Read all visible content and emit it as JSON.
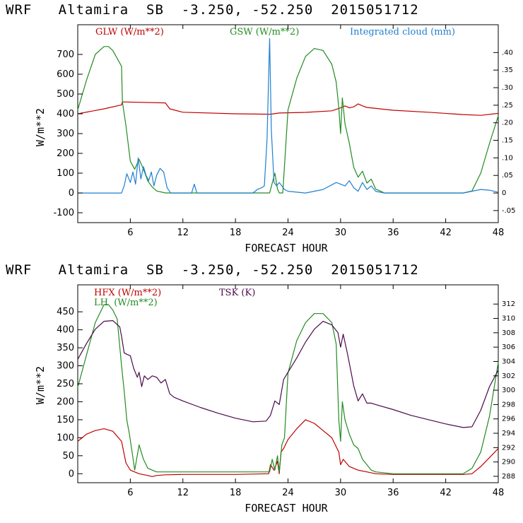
{
  "chart_data": [
    {
      "type": "line",
      "title": "WRF   Altamira  SB  -3.250, -52.250  2015051712",
      "xlabel": "FORECAST HOUR",
      "ylabel": "W/m**2",
      "xlim": [
        0,
        48
      ],
      "ylim": [
        -150,
        850
      ],
      "y2lim": [
        -0.0844,
        0.4792
      ],
      "xticks": [
        6,
        12,
        18,
        24,
        30,
        36,
        42,
        48
      ],
      "yticks": [
        -100,
        0,
        100,
        200,
        300,
        400,
        500,
        600,
        700
      ],
      "y2ticks": [
        -0.05,
        0,
        0.05,
        0.1,
        0.15,
        0.2,
        0.25,
        0.3,
        0.35,
        0.4
      ],
      "y2tick_labels": [
        "-.05",
        "0",
        ".05",
        ".10",
        ".15",
        ".20",
        ".25",
        ".30",
        ".35",
        ".40"
      ],
      "series": [
        {
          "name": "GLW (W/m**2)",
          "color": "#c00000",
          "axis": "left",
          "x": [
            0,
            3,
            5,
            5.1,
            10,
            10.5,
            12,
            18,
            22,
            23,
            26,
            29,
            30,
            30.5,
            31,
            31.5,
            32,
            32.5,
            33,
            36,
            40,
            44,
            46,
            48
          ],
          "y": [
            400,
            425,
            445,
            460,
            455,
            425,
            408,
            400,
            398,
            404,
            407,
            415,
            430,
            440,
            430,
            435,
            450,
            440,
            432,
            418,
            408,
            396,
            392,
            402
          ]
        },
        {
          "name": "GSW (W/m**2)",
          "color": "#228b22",
          "axis": "left",
          "x": [
            0,
            1,
            2,
            3,
            3.5,
            4,
            5,
            5.1,
            5.5,
            6,
            6.5,
            7,
            7.5,
            8,
            8.5,
            9,
            10,
            11,
            21.9,
            22.2,
            22.5,
            22.8,
            23,
            23.4,
            24,
            25,
            26,
            27,
            28,
            29,
            29.5,
            29.8,
            30,
            30.2,
            30.5,
            31,
            31.5,
            32,
            32.5,
            33,
            33.5,
            34,
            34.5,
            35,
            36,
            44,
            45,
            46,
            47,
            48
          ],
          "y": [
            420,
            570,
            700,
            740,
            740,
            720,
            640,
            460,
            340,
            160,
            120,
            170,
            120,
            60,
            30,
            10,
            0,
            0,
            0,
            50,
            100,
            20,
            0,
            0,
            420,
            580,
            690,
            730,
            720,
            650,
            560,
            430,
            300,
            480,
            350,
            250,
            130,
            80,
            110,
            50,
            70,
            20,
            10,
            0,
            0,
            0,
            10,
            100,
            250,
            390
          ]
        },
        {
          "name": "Integrated cloud (mm)",
          "color": "#1e7fd0",
          "axis": "right",
          "x": [
            0,
            5,
            5.3,
            5.6,
            6,
            6.3,
            6.6,
            6.9,
            7.2,
            7.5,
            7.8,
            8.1,
            8.4,
            8.7,
            9,
            9.4,
            9.8,
            10.2,
            10.6,
            11,
            13,
            13.3,
            13.6,
            14,
            20,
            20.5,
            21,
            21.3,
            21.6,
            21.9,
            22.1,
            22.4,
            22.7,
            23,
            23.3,
            23.6,
            24,
            26,
            28,
            29.5,
            30,
            30.5,
            31,
            31.5,
            32,
            32.5,
            33,
            33.5,
            34,
            35,
            44,
            45,
            46,
            47,
            48
          ],
          "y": [
            0,
            0,
            0.02,
            0.055,
            0.03,
            0.06,
            0.025,
            0.1,
            0.04,
            0.075,
            0.05,
            0.035,
            0.06,
            0.02,
            0.05,
            0.07,
            0.06,
            0.015,
            0,
            0,
            0,
            0.025,
            0,
            0,
            0,
            0.01,
            0.015,
            0.02,
            0.15,
            0.44,
            0.18,
            0.03,
            0.02,
            0.03,
            0.02,
            0.01,
            0.005,
            0,
            0.01,
            0.03,
            0.025,
            0.02,
            0.035,
            0.015,
            0.005,
            0.03,
            0.01,
            0.02,
            0.005,
            0,
            0,
            0.005,
            0.01,
            0.008,
            0.002
          ]
        }
      ]
    },
    {
      "type": "line",
      "title": "WRF   Altamira  SB  -3.250, -52.250  2015051712",
      "xlabel": "FORECAST HOUR",
      "ylabel": "W/m**2",
      "xlim": [
        0,
        48
      ],
      "ylim": [
        -25,
        525
      ],
      "y2lim": [
        287.11,
        314.68
      ],
      "xticks": [
        6,
        12,
        18,
        24,
        30,
        36,
        42,
        48
      ],
      "yticks": [
        0,
        50,
        100,
        150,
        200,
        250,
        300,
        350,
        400,
        450
      ],
      "y2ticks": [
        288,
        290,
        292,
        294,
        296,
        298,
        300,
        302,
        304,
        306,
        308,
        310,
        312
      ],
      "y2tick_labels": [
        "288",
        "290",
        "292",
        "294",
        "296",
        "298",
        "300",
        "302",
        "304",
        "306",
        "308",
        "310",
        "312"
      ],
      "series": [
        {
          "name": "HFX (W/m**2)",
          "color": "#c00000",
          "axis": "left",
          "x": [
            0,
            1,
            2,
            3,
            4,
            5,
            5.5,
            6,
            7,
            8,
            8.5,
            9,
            10,
            12,
            18,
            21.8,
            22,
            22.4,
            22.8,
            23,
            23.2,
            23.5,
            24,
            25,
            26,
            27,
            28,
            29,
            29.8,
            30,
            30.3,
            31,
            32,
            33,
            34,
            36,
            44,
            45,
            46,
            47,
            48
          ],
          "y": [
            90,
            110,
            120,
            125,
            118,
            90,
            30,
            10,
            0,
            -5,
            -8,
            -5,
            -3,
            -2,
            -2,
            0,
            25,
            10,
            35,
            0,
            60,
            70,
            95,
            125,
            150,
            140,
            120,
            100,
            60,
            25,
            40,
            20,
            10,
            5,
            0,
            -2,
            -2,
            0,
            20,
            45,
            70
          ]
        },
        {
          "name": "LH  (W/m**2)",
          "color": "#228b22",
          "axis": "left",
          "x": [
            0,
            1,
            2,
            3,
            3.5,
            4,
            4.5,
            5,
            5.3,
            5.6,
            5.9,
            6.2,
            6.5,
            7,
            7.5,
            8,
            8.5,
            9,
            10,
            12,
            18,
            21.9,
            22.2,
            22.5,
            22.8,
            23,
            23.3,
            23.6,
            24,
            25,
            26,
            27,
            28,
            29,
            29.5,
            29.8,
            30,
            30.2,
            30.5,
            31,
            31.5,
            32,
            32.5,
            33,
            33.5,
            34,
            36,
            44,
            45,
            46,
            47,
            48
          ],
          "y": [
            240,
            330,
            420,
            470,
            470,
            455,
            430,
            300,
            230,
            150,
            110,
            60,
            10,
            80,
            40,
            15,
            10,
            5,
            5,
            5,
            5,
            5,
            40,
            10,
            50,
            5,
            80,
            100,
            280,
            370,
            420,
            445,
            445,
            420,
            360,
            150,
            90,
            200,
            150,
            110,
            80,
            70,
            40,
            25,
            10,
            5,
            0,
            0,
            15,
            60,
            160,
            310
          ]
        },
        {
          "name": "TSK (K)",
          "color": "#4b0a4b",
          "axis": "right",
          "x": [
            0,
            1,
            2,
            3,
            4,
            4.8,
            5,
            5.3,
            5.6,
            6,
            6.4,
            6.8,
            7,
            7.3,
            7.6,
            8,
            8.5,
            9,
            9.5,
            10,
            10.5,
            11,
            12,
            14,
            16,
            18,
            20,
            21.5,
            22,
            22.5,
            23,
            23.5,
            24,
            25,
            26,
            27,
            28,
            29,
            29.7,
            30,
            30.3,
            30.8,
            31.2,
            31.5,
            32,
            32.5,
            33,
            33.5,
            34,
            36,
            38,
            40,
            42,
            44,
            45,
            46,
            47,
            48
          ],
          "y": [
            304.3,
            306.5,
            308.5,
            309.6,
            309.7,
            308.8,
            307.5,
            305.2,
            305,
            304.8,
            303,
            301.8,
            302.5,
            300.5,
            302,
            301.5,
            302,
            301.8,
            301,
            301.5,
            299.5,
            299,
            298.5,
            297.6,
            296.8,
            296.1,
            295.6,
            295.7,
            296.5,
            298.5,
            298,
            301.5,
            302.5,
            304.5,
            306.7,
            308.5,
            309.6,
            309.1,
            308,
            306,
            307.8,
            305,
            302.5,
            300.6,
            298.5,
            299.5,
            298.2,
            298.2,
            298,
            297.3,
            296.5,
            295.9,
            295.3,
            294.8,
            294.9,
            297.2,
            300.5,
            302.8
          ]
        }
      ]
    }
  ]
}
